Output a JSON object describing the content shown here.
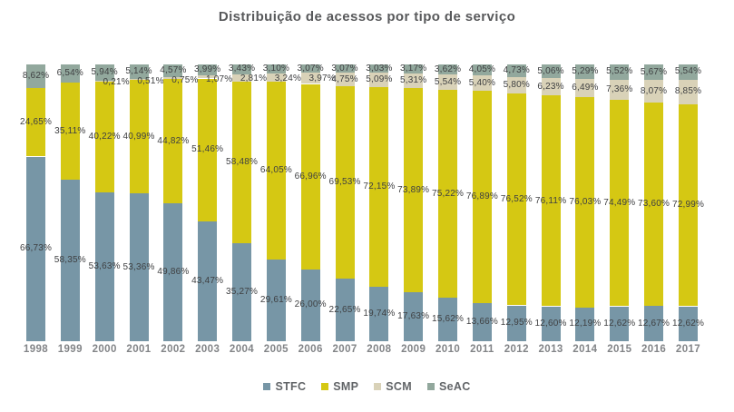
{
  "title": "Distribuição de acessos por tipo de serviço",
  "chart_data": {
    "type": "bar",
    "variant": "stacked-percent-column",
    "title": "Distribuição de acessos por tipo de serviço",
    "xlabel": "",
    "ylabel": "",
    "ylim": [
      0,
      100
    ],
    "grid": false,
    "axes_visible": false,
    "legend_position": "bottom",
    "value_label_format": "pt-BR comma decimal, 2 places, percent suffix",
    "categories": [
      "1998",
      "1999",
      "2000",
      "2001",
      "2002",
      "2003",
      "2004",
      "2005",
      "2006",
      "2007",
      "2008",
      "2009",
      "2010",
      "2011",
      "2012",
      "2013",
      "2014",
      "2015",
      "2016",
      "2017"
    ],
    "series": [
      {
        "name": "STFC",
        "color": "#7796a6",
        "values": [
          66.73,
          58.35,
          53.63,
          53.36,
          49.86,
          43.47,
          35.27,
          29.61,
          26.0,
          22.65,
          19.74,
          17.63,
          15.62,
          13.66,
          12.95,
          12.6,
          12.19,
          12.62,
          12.67,
          12.62
        ]
      },
      {
        "name": "SMP",
        "color": "#d5c813",
        "values": [
          24.65,
          35.11,
          40.22,
          40.99,
          44.82,
          51.46,
          58.48,
          64.05,
          66.96,
          69.53,
          72.15,
          73.89,
          75.22,
          76.89,
          76.52,
          76.11,
          76.03,
          74.49,
          73.6,
          72.99
        ]
      },
      {
        "name": "SCM",
        "color": "#d9d2b8",
        "values": [
          null,
          null,
          0.21,
          0.51,
          0.75,
          1.07,
          2.81,
          3.24,
          3.97,
          4.75,
          5.09,
          5.31,
          5.54,
          5.4,
          5.8,
          6.23,
          6.49,
          7.36,
          8.07,
          8.85
        ]
      },
      {
        "name": "SeAC",
        "color": "#92a89d",
        "values": [
          8.62,
          6.54,
          5.94,
          5.14,
          4.57,
          3.99,
          3.43,
          3.1,
          3.07,
          3.07,
          3.03,
          3.17,
          3.62,
          4.05,
          4.73,
          5.06,
          5.29,
          5.52,
          5.67,
          5.54
        ]
      }
    ]
  },
  "legend": {
    "items": [
      "STFC",
      "SMP",
      "SCM",
      "SeAC"
    ]
  }
}
